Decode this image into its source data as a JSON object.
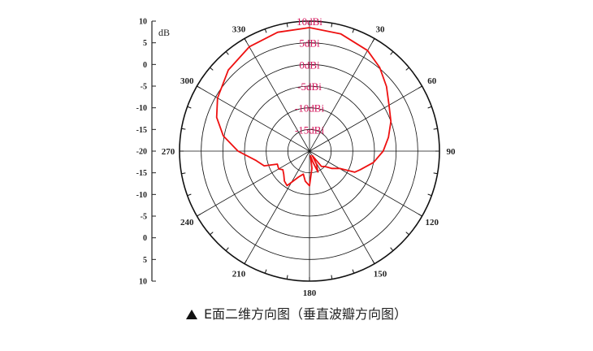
{
  "chart_data": {
    "type": "polar-line",
    "unit_label": "dB",
    "radial_axis_ticks": [
      "10",
      "5",
      "0",
      "-5",
      "-10",
      "-15",
      "-20",
      "-15",
      "-10",
      "-5",
      "0",
      "5",
      "10"
    ],
    "ring_labels": [
      "10dBi",
      "5dBi",
      "0dBi",
      "-5dBi",
      "-10dBi",
      "-15dBi"
    ],
    "r_range": [
      -20,
      10
    ],
    "ring_values": [
      10,
      5,
      0,
      -5,
      -10,
      -15
    ],
    "angle_labels": [
      {
        "angle": 0,
        "text": ""
      },
      {
        "angle": 30,
        "text": "30"
      },
      {
        "angle": 60,
        "text": "60"
      },
      {
        "angle": 90,
        "text": "90"
      },
      {
        "angle": 120,
        "text": "120"
      },
      {
        "angle": 150,
        "text": "150"
      },
      {
        "angle": 180,
        "text": "180"
      },
      {
        "angle": 210,
        "text": "210"
      },
      {
        "angle": 240,
        "text": "240"
      },
      {
        "angle": 270,
        "text": "270"
      },
      {
        "angle": 300,
        "text": "300"
      },
      {
        "angle": 330,
        "text": "330"
      }
    ],
    "series": [
      {
        "color": "#ee1111",
        "points": [
          [
            0,
            8.5
          ],
          [
            15,
            8.0
          ],
          [
            30,
            6.8
          ],
          [
            40,
            5.2
          ],
          [
            50,
            3.2
          ],
          [
            60,
            1.2
          ],
          [
            70,
            0.0
          ],
          [
            80,
            -1.5
          ],
          [
            90,
            -3.0
          ],
          [
            100,
            -5.0
          ],
          [
            110,
            -7.5
          ],
          [
            115,
            -8.5
          ],
          [
            120,
            -12.0
          ],
          [
            128,
            -13.5
          ],
          [
            135,
            -15.0
          ],
          [
            142,
            -15.5
          ],
          [
            148,
            -18.8
          ],
          [
            152,
            -16.5
          ],
          [
            158,
            -14.8
          ],
          [
            163,
            -17.5
          ],
          [
            168,
            -18.9
          ],
          [
            172,
            -16.0
          ],
          [
            180,
            -12.0
          ],
          [
            188,
            -13.0
          ],
          [
            195,
            -14.5
          ],
          [
            203,
            -13.5
          ],
          [
            213,
            -10.5
          ],
          [
            220,
            -11.0
          ],
          [
            228,
            -12.0
          ],
          [
            235,
            -12.5
          ],
          [
            240,
            -11.8
          ],
          [
            248,
            -12.0
          ],
          [
            252,
            -9.0
          ],
          [
            260,
            -7.5
          ],
          [
            270,
            -3.5
          ],
          [
            280,
            0.2
          ],
          [
            290,
            2.8
          ],
          [
            300,
            4.5
          ],
          [
            315,
            6.5
          ],
          [
            330,
            7.8
          ],
          [
            345,
            8.4
          ],
          [
            360,
            8.5
          ]
        ]
      }
    ]
  },
  "caption": {
    "text": "E面二维方向图（垂直波瓣方向图）"
  },
  "colors": {
    "axis": "#222222",
    "ring_label": "#d4145a",
    "curve": "#ee1111"
  }
}
